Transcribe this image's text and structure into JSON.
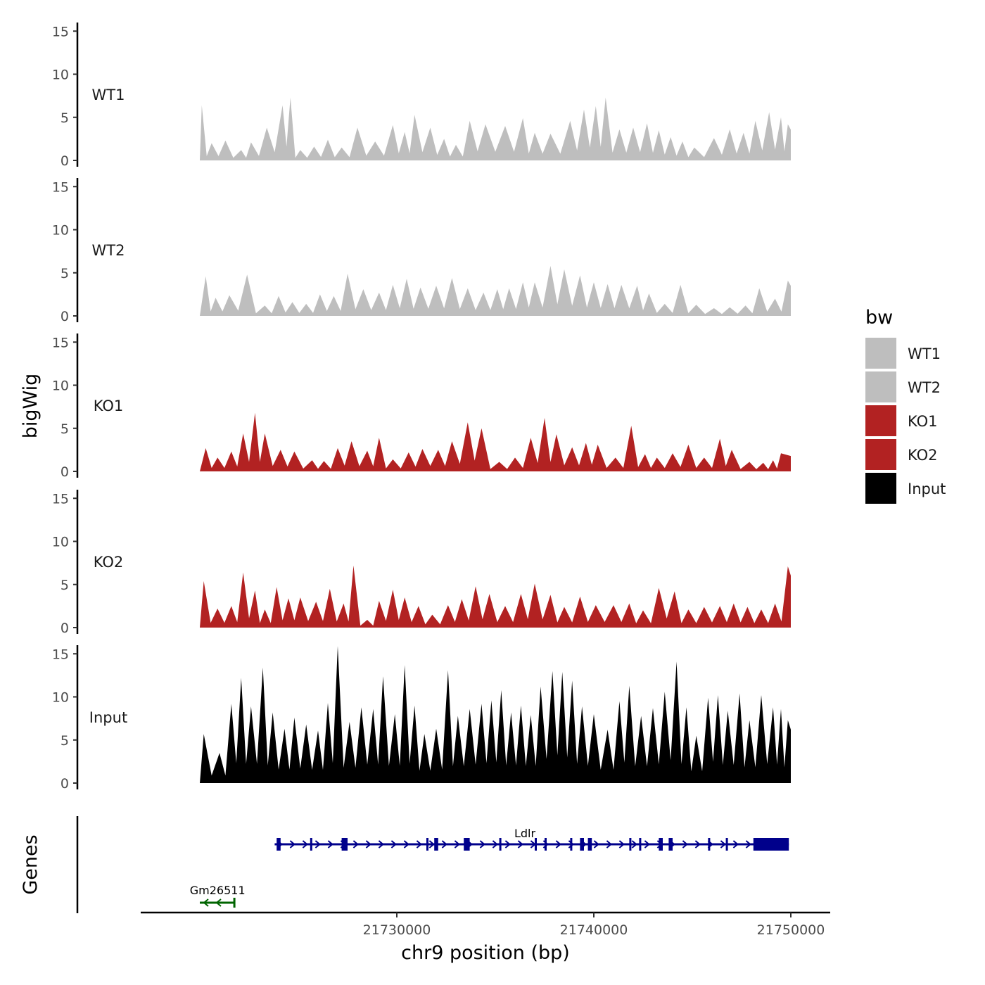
{
  "chart_data": {
    "type": "area",
    "title": "",
    "xlabel": "chr9 position (bp)",
    "ylabel": "bigWig",
    "genes_label": "Genes",
    "x_range": [
      21720000,
      21750000
    ],
    "xlim": [
      21717000,
      21752000
    ],
    "ylim": [
      0,
      16
    ],
    "x_ticks": [
      21730000,
      21740000,
      21750000
    ],
    "x_tick_labels": [
      "21730000",
      "21740000",
      "21750000"
    ],
    "y_ticks": [
      0,
      5,
      10,
      15
    ],
    "y_tick_labels": [
      "0",
      "5",
      "10",
      "15"
    ],
    "legend": {
      "title": "bw",
      "position": "right"
    },
    "series": [
      {
        "name": "WT1",
        "color": "#bebebe",
        "peaks": [
          [
            21720100,
            6.4
          ],
          [
            21720600,
            2
          ],
          [
            21721300,
            2.3
          ],
          [
            21722100,
            1.2
          ],
          [
            21722600,
            2.1
          ],
          [
            21723400,
            3.8
          ],
          [
            21724200,
            6.4
          ],
          [
            21724600,
            7.3
          ],
          [
            21725100,
            1.2
          ],
          [
            21725800,
            1.6
          ],
          [
            21726500,
            2.4
          ],
          [
            21727200,
            1.5
          ],
          [
            21728000,
            3.8
          ],
          [
            21728900,
            2.2
          ],
          [
            21729800,
            4.1
          ],
          [
            21730400,
            3.3
          ],
          [
            21730900,
            5.3
          ],
          [
            21731700,
            3.8
          ],
          [
            21732400,
            2.5
          ],
          [
            21733000,
            1.8
          ],
          [
            21733700,
            4.6
          ],
          [
            21734500,
            4.2
          ],
          [
            21735500,
            4.0
          ],
          [
            21736400,
            4.9
          ],
          [
            21737000,
            3.2
          ],
          [
            21737800,
            3.1
          ],
          [
            21738800,
            4.6
          ],
          [
            21739500,
            5.9
          ],
          [
            21740100,
            6.3
          ],
          [
            21740600,
            7.3
          ],
          [
            21741300,
            3.6
          ],
          [
            21742000,
            3.8
          ],
          [
            21742700,
            4.3
          ],
          [
            21743300,
            3.5
          ],
          [
            21743900,
            2.7
          ],
          [
            21744500,
            2.2
          ],
          [
            21745100,
            1.5
          ],
          [
            21746100,
            2.6
          ],
          [
            21746900,
            3.6
          ],
          [
            21747600,
            3.2
          ],
          [
            21748200,
            4.6
          ],
          [
            21748900,
            5.6
          ],
          [
            21749500,
            5.0
          ],
          [
            21749850,
            4.2
          ]
        ]
      },
      {
        "name": "WT2",
        "color": "#bebebe",
        "peaks": [
          [
            21720300,
            4.6
          ],
          [
            21720800,
            2.1
          ],
          [
            21721500,
            2.4
          ],
          [
            21722400,
            4.8
          ],
          [
            21723300,
            1.2
          ],
          [
            21724000,
            2.3
          ],
          [
            21724700,
            1.6
          ],
          [
            21725400,
            1.4
          ],
          [
            21726100,
            2.5
          ],
          [
            21726800,
            2.3
          ],
          [
            21727500,
            4.9
          ],
          [
            21728300,
            3.1
          ],
          [
            21729100,
            2.7
          ],
          [
            21729800,
            3.6
          ],
          [
            21730500,
            4.3
          ],
          [
            21731200,
            3.3
          ],
          [
            21732000,
            3.5
          ],
          [
            21732800,
            4.4
          ],
          [
            21733600,
            3.2
          ],
          [
            21734400,
            2.7
          ],
          [
            21735100,
            3.1
          ],
          [
            21735700,
            3.2
          ],
          [
            21736400,
            3.9
          ],
          [
            21737000,
            3.9
          ],
          [
            21737800,
            5.8
          ],
          [
            21738500,
            5.4
          ],
          [
            21739300,
            4.7
          ],
          [
            21740000,
            3.9
          ],
          [
            21740700,
            3.7
          ],
          [
            21741400,
            3.6
          ],
          [
            21742200,
            3.5
          ],
          [
            21742800,
            2.6
          ],
          [
            21743600,
            1.4
          ],
          [
            21744400,
            3.6
          ],
          [
            21745200,
            1.3
          ],
          [
            21746100,
            0.9
          ],
          [
            21746900,
            1.0
          ],
          [
            21747700,
            1.2
          ],
          [
            21748400,
            3.2
          ],
          [
            21749200,
            2.0
          ],
          [
            21749850,
            4.1
          ]
        ]
      },
      {
        "name": "KO1",
        "color": "#b22222",
        "peaks": [
          [
            21720300,
            2.7
          ],
          [
            21720900,
            1.6
          ],
          [
            21721600,
            2.3
          ],
          [
            21722200,
            4.4
          ],
          [
            21722800,
            6.8
          ],
          [
            21723300,
            4.4
          ],
          [
            21724100,
            2.5
          ],
          [
            21724800,
            2.3
          ],
          [
            21725700,
            1.3
          ],
          [
            21726300,
            1.2
          ],
          [
            21727000,
            2.7
          ],
          [
            21727700,
            3.5
          ],
          [
            21728500,
            2.4
          ],
          [
            21729100,
            3.9
          ],
          [
            21729800,
            1.4
          ],
          [
            21730600,
            2.2
          ],
          [
            21731300,
            2.6
          ],
          [
            21732100,
            2.5
          ],
          [
            21732800,
            3.5
          ],
          [
            21733600,
            5.7
          ],
          [
            21734300,
            5.0
          ],
          [
            21735200,
            1.1
          ],
          [
            21736000,
            1.6
          ],
          [
            21736800,
            3.9
          ],
          [
            21737500,
            6.2
          ],
          [
            21738100,
            4.3
          ],
          [
            21738900,
            2.8
          ],
          [
            21739600,
            3.3
          ],
          [
            21740200,
            3.1
          ],
          [
            21741100,
            1.6
          ],
          [
            21741900,
            5.3
          ],
          [
            21742600,
            2.0
          ],
          [
            21743200,
            1.6
          ],
          [
            21744000,
            2.1
          ],
          [
            21744800,
            3.1
          ],
          [
            21745600,
            1.6
          ],
          [
            21746400,
            3.8
          ],
          [
            21747000,
            2.5
          ],
          [
            21747900,
            1.1
          ],
          [
            21748600,
            1.0
          ],
          [
            21749100,
            1.3
          ],
          [
            21749500,
            2.1
          ]
        ]
      },
      {
        "name": "KO2",
        "color": "#b22222",
        "peaks": [
          [
            21720200,
            5.4
          ],
          [
            21720900,
            2.2
          ],
          [
            21721600,
            2.5
          ],
          [
            21722200,
            6.4
          ],
          [
            21722800,
            4.3
          ],
          [
            21723300,
            2.1
          ],
          [
            21723900,
            4.7
          ],
          [
            21724500,
            3.4
          ],
          [
            21725100,
            3.5
          ],
          [
            21725900,
            3.0
          ],
          [
            21726600,
            4.5
          ],
          [
            21727300,
            2.8
          ],
          [
            21727800,
            7.2
          ],
          [
            21728500,
            0.9
          ],
          [
            21729100,
            3.1
          ],
          [
            21729800,
            4.4
          ],
          [
            21730400,
            3.5
          ],
          [
            21731100,
            2.5
          ],
          [
            21731800,
            1.5
          ],
          [
            21732600,
            2.6
          ],
          [
            21733300,
            3.3
          ],
          [
            21734000,
            4.8
          ],
          [
            21734700,
            3.9
          ],
          [
            21735500,
            2.5
          ],
          [
            21736300,
            3.9
          ],
          [
            21737000,
            5.1
          ],
          [
            21737800,
            3.8
          ],
          [
            21738500,
            2.4
          ],
          [
            21739300,
            3.6
          ],
          [
            21740100,
            2.6
          ],
          [
            21741000,
            2.6
          ],
          [
            21741800,
            2.8
          ],
          [
            21742500,
            2.0
          ],
          [
            21743300,
            4.6
          ],
          [
            21744100,
            4.2
          ],
          [
            21744800,
            2.1
          ],
          [
            21745600,
            2.4
          ],
          [
            21746400,
            2.5
          ],
          [
            21747100,
            2.8
          ],
          [
            21747800,
            2.4
          ],
          [
            21748500,
            2.1
          ],
          [
            21749200,
            2.8
          ],
          [
            21749850,
            7.1
          ]
        ]
      },
      {
        "name": "Input",
        "color": "#000000",
        "peaks": [
          [
            21720200,
            5.7
          ],
          [
            21721000,
            3.5
          ],
          [
            21721600,
            9.2
          ],
          [
            21722100,
            12.2
          ],
          [
            21722600,
            8.9
          ],
          [
            21723200,
            13.4
          ],
          [
            21723700,
            8.2
          ],
          [
            21724300,
            6.3
          ],
          [
            21724800,
            7.6
          ],
          [
            21725400,
            6.8
          ],
          [
            21726000,
            6.1
          ],
          [
            21726500,
            9.3
          ],
          [
            21727000,
            15.9
          ],
          [
            21727600,
            7.1
          ],
          [
            21728200,
            8.8
          ],
          [
            21728800,
            8.6
          ],
          [
            21729300,
            12.4
          ],
          [
            21729900,
            8.0
          ],
          [
            21730400,
            13.7
          ],
          [
            21730900,
            9.0
          ],
          [
            21731400,
            5.7
          ],
          [
            21732000,
            6.3
          ],
          [
            21732600,
            13.1
          ],
          [
            21733100,
            7.8
          ],
          [
            21733700,
            8.6
          ],
          [
            21734300,
            9.2
          ],
          [
            21734800,
            9.6
          ],
          [
            21735300,
            10.8
          ],
          [
            21735800,
            8.2
          ],
          [
            21736300,
            9.0
          ],
          [
            21736800,
            7.9
          ],
          [
            21737300,
            11.2
          ],
          [
            21737900,
            13.0
          ],
          [
            21738400,
            12.9
          ],
          [
            21738900,
            11.9
          ],
          [
            21739400,
            8.9
          ],
          [
            21740000,
            8.0
          ],
          [
            21740700,
            6.2
          ],
          [
            21741300,
            9.5
          ],
          [
            21741800,
            11.3
          ],
          [
            21742400,
            7.8
          ],
          [
            21743000,
            8.7
          ],
          [
            21743600,
            10.6
          ],
          [
            21744200,
            14.1
          ],
          [
            21744700,
            8.8
          ],
          [
            21745200,
            5.5
          ],
          [
            21745800,
            9.9
          ],
          [
            21746300,
            10.2
          ],
          [
            21746800,
            8.4
          ],
          [
            21747400,
            10.4
          ],
          [
            21747900,
            7.3
          ],
          [
            21748500,
            10.2
          ],
          [
            21749100,
            8.8
          ],
          [
            21749500,
            8.6
          ],
          [
            21749850,
            7.3
          ]
        ]
      }
    ],
    "genes": [
      {
        "name": "Gm26511",
        "strand": "-",
        "color": "#006400",
        "start": 21720000,
        "end": 21721800,
        "exons": [
          [
            21721700,
            21721800
          ]
        ]
      },
      {
        "name": "Ldlr",
        "strand": "+",
        "color": "#00008b",
        "start": 21723800,
        "end": 21749900,
        "exons": [
          [
            21723900,
            21724100
          ],
          [
            21725600,
            21725700
          ],
          [
            21727200,
            21727500
          ],
          [
            21731500,
            21731600
          ],
          [
            21731900,
            21732100
          ],
          [
            21733400,
            21733700
          ],
          [
            21735200,
            21735300
          ],
          [
            21737000,
            21737100
          ],
          [
            21737500,
            21737600
          ],
          [
            21738800,
            21738900
          ],
          [
            21739300,
            21739500
          ],
          [
            21739700,
            21739900
          ],
          [
            21741800,
            21741900
          ],
          [
            21742300,
            21742400
          ],
          [
            21743300,
            21743500
          ],
          [
            21743800,
            21744000
          ],
          [
            21745800,
            21745900
          ],
          [
            21746700,
            21746800
          ],
          [
            21748100,
            21749900
          ]
        ]
      }
    ]
  }
}
